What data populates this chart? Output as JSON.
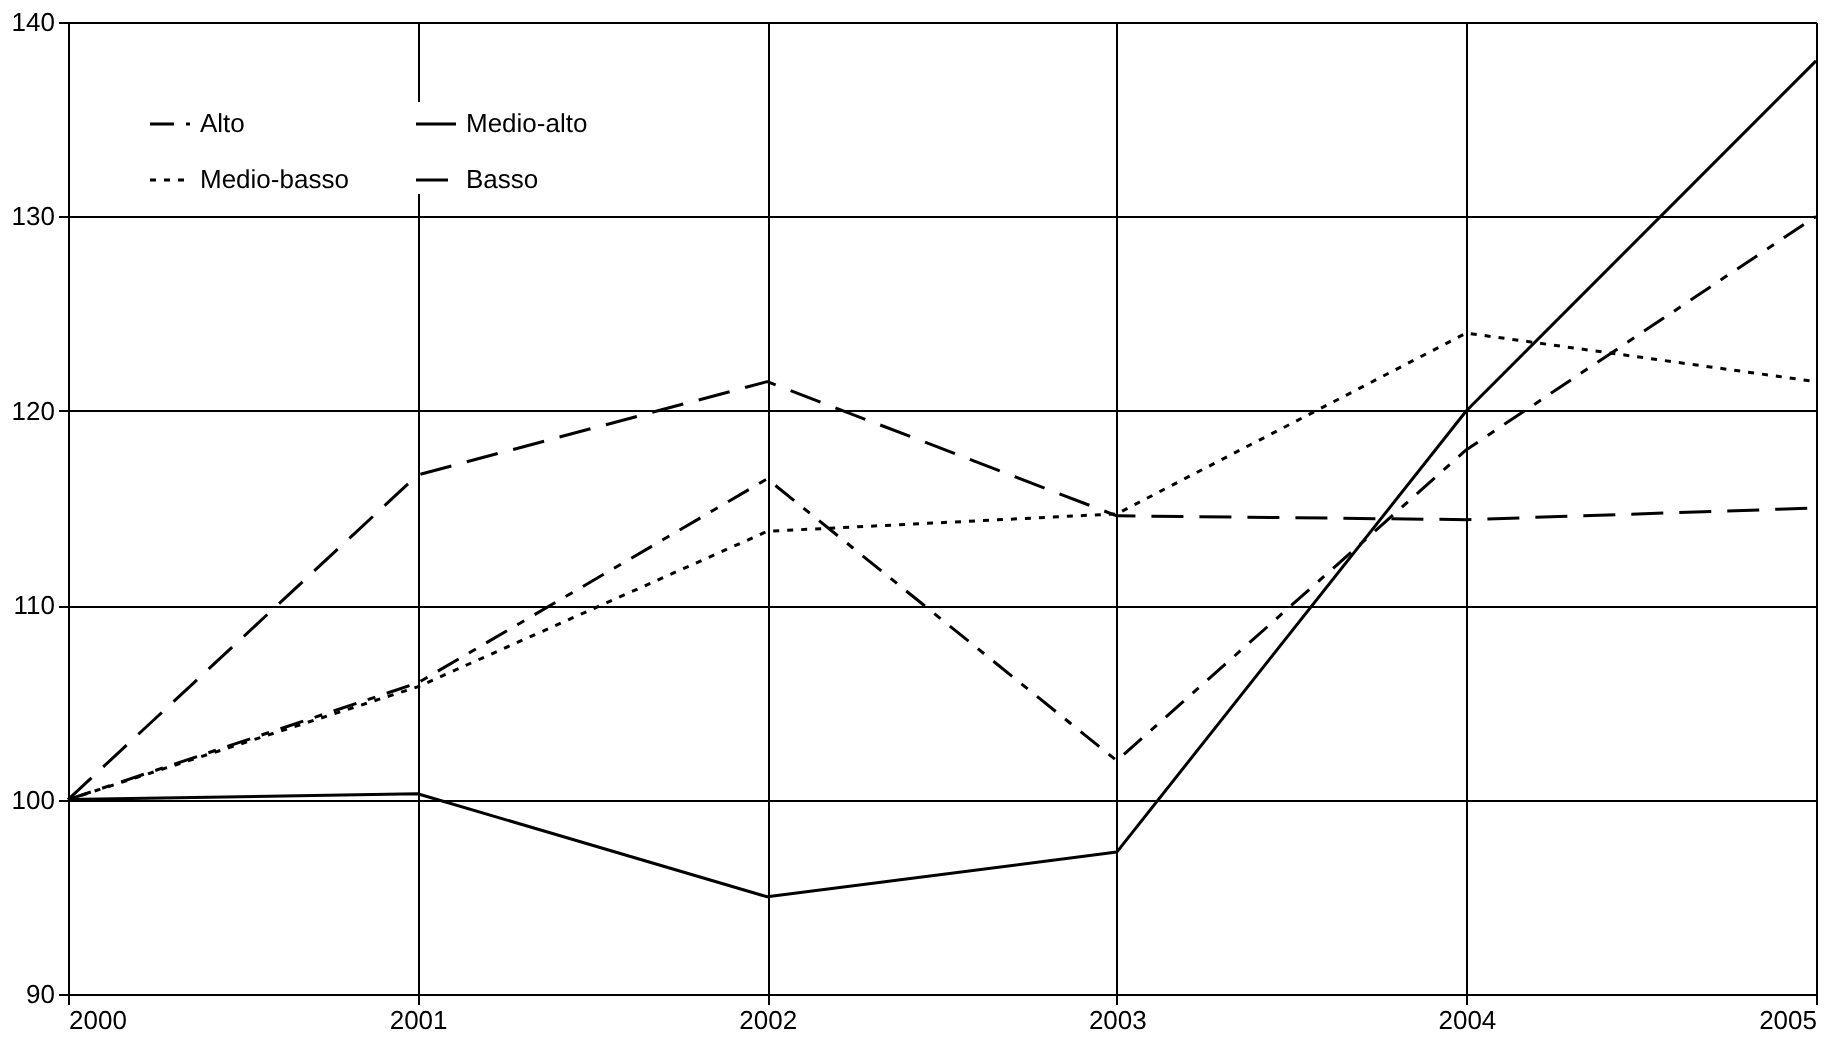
{
  "chart_data": {
    "type": "line",
    "x": [
      2000,
      2001,
      2002,
      2003,
      2004,
      2005
    ],
    "xlim": [
      2000,
      2005
    ],
    "xticks": [
      2000,
      2001,
      2002,
      2003,
      2004,
      2005
    ],
    "ylim": [
      90,
      140
    ],
    "yticks": [
      90,
      100,
      110,
      120,
      130,
      140
    ],
    "grid": true,
    "legend": "top left",
    "marker": "none",
    "series": [
      {
        "name": "Alto",
        "color": "#000000",
        "line_style": "dashed",
        "values": [
          100,
          106,
          116.5,
          102,
          118,
          130
        ]
      },
      {
        "name": "Medio-alto",
        "color": "#000000",
        "line_style": "solid",
        "values": [
          100,
          100.3,
          95,
          97.3,
          120,
          138
        ]
      },
      {
        "name": "Medio-basso",
        "color": "#000000",
        "line_style": "dotted",
        "values": [
          100,
          105.8,
          113.8,
          114.7,
          124,
          121.5
        ]
      },
      {
        "name": "Basso",
        "color": "#000000",
        "line_style": "dashed",
        "values": [
          100,
          116.7,
          121.5,
          114.6,
          114.4,
          115
        ]
      }
    ]
  }
}
